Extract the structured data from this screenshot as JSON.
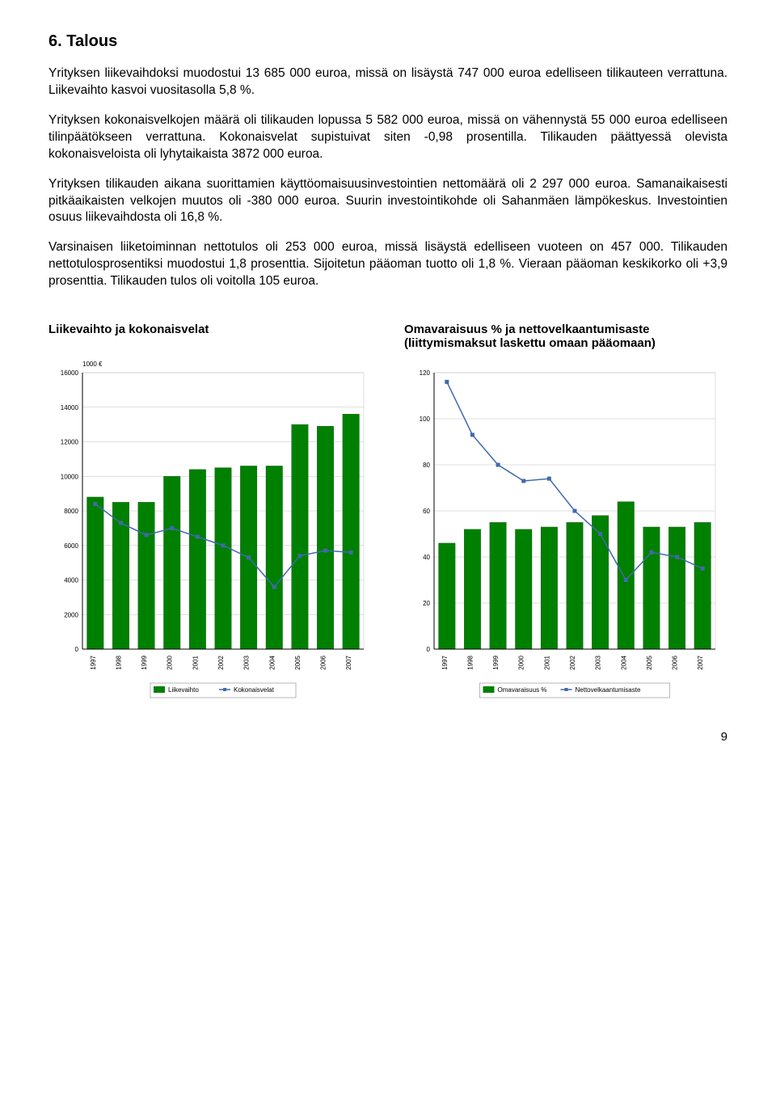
{
  "heading": "6. Talous",
  "paragraphs": [
    "Yrityksen liikevaihdoksi muodostui 13 685 000 euroa, missä on lisäystä 747 000 euroa edelliseen tilikauteen verrattuna. Liikevaihto kasvoi vuositasolla 5,8 %.",
    "Yrityksen kokonaisvelkojen määrä oli tilikauden lopussa 5 582 000 euroa, missä on vähennystä 55 000 euroa edelliseen tilinpäätökseen verrattuna. Kokonaisvelat supistuivat siten -0,98 prosentilla. Tilikauden päättyessä olevista kokonaisveloista oli lyhytaikaista 3872 000 euroa.",
    "Yrityksen tilikauden aikana suorittamien käyttöomaisuusinvestointien nettomäärä oli 2 297 000 euroa. Samanaikaisesti pitkäaikaisten velkojen muutos oli -380 000 euroa. Suurin investointikohde oli Sahanmäen lämpökeskus. Investointien osuus liikevaihdosta oli 16,8 %.",
    "Varsinaisen liiketoiminnan nettotulos oli 253 000 euroa, missä lisäystä edelliseen vuoteen on 457 000. Tilikauden nettotulosprosentiksi muodostui 1,8 prosenttia. Sijoitetun pääoman tuotto oli 1,8 %. Vieraan pääoman keskikorko oli +3,9 prosenttia. Tilikauden tulos oli voitolla 105 euroa."
  ],
  "chart_headers": {
    "left": "Liikevaihto ja kokonaisvelat",
    "right": "Omavaraisuus % ja nettovelkaantumisaste (liittymismaksut laskettu omaan pääomaan)"
  },
  "chart_left": {
    "type": "bar+line",
    "subtitle": "1000 €",
    "subtitle_fontsize": 8,
    "categories": [
      "1997",
      "1998",
      "1999",
      "2000",
      "2001",
      "2002",
      "2003",
      "2004",
      "2005",
      "2006",
      "2007"
    ],
    "bar_series": {
      "name": "Liikevaihto",
      "values": [
        8800,
        8500,
        8500,
        10000,
        10400,
        10500,
        10600,
        10600,
        13000,
        12900,
        13600
      ],
      "color": "#008000"
    },
    "line_series": {
      "name": "Kokonaisvelat",
      "values": [
        8400,
        7300,
        6600,
        7000,
        6500,
        6000,
        5300,
        3600,
        5400,
        5700,
        5600
      ],
      "color": "#4169aa",
      "marker": "square",
      "marker_color": "#4169aa",
      "line_width": 1.5
    },
    "ylim": [
      0,
      16000
    ],
    "ytick_step": 2000,
    "background_color": "#ffffff",
    "grid_color": "#c0c0c0",
    "axis_color": "#000000",
    "bar_width": 0.65,
    "legend_labels": [
      "Liikevaihto",
      "Kokonaisvelat"
    ],
    "tick_fontsize": 8,
    "legend_fontsize": 8
  },
  "chart_right": {
    "type": "bar+line",
    "categories": [
      "1997",
      "1998",
      "1999",
      "2000",
      "2001",
      "2002",
      "2003",
      "2004",
      "2005",
      "2006",
      "2007"
    ],
    "bar_series": {
      "name": "Omavaraisuus %",
      "values": [
        46,
        52,
        55,
        52,
        53,
        55,
        58,
        64,
        53,
        53,
        55
      ],
      "color": "#008000"
    },
    "line_series": {
      "name": "Nettovelkaantumisaste",
      "values": [
        116,
        93,
        80,
        73,
        74,
        60,
        50,
        30,
        42,
        40,
        35
      ],
      "color": "#4169aa",
      "marker": "square",
      "marker_color": "#4169aa",
      "line_width": 1.5
    },
    "ylim": [
      0,
      120
    ],
    "ytick_step": 20,
    "background_color": "#ffffff",
    "grid_color": "#c0c0c0",
    "axis_color": "#000000",
    "bar_width": 0.65,
    "legend_labels": [
      "Omavaraisuus %",
      "Nettovelkaantumisaste"
    ],
    "tick_fontsize": 8,
    "legend_fontsize": 8
  },
  "page_number": "9"
}
